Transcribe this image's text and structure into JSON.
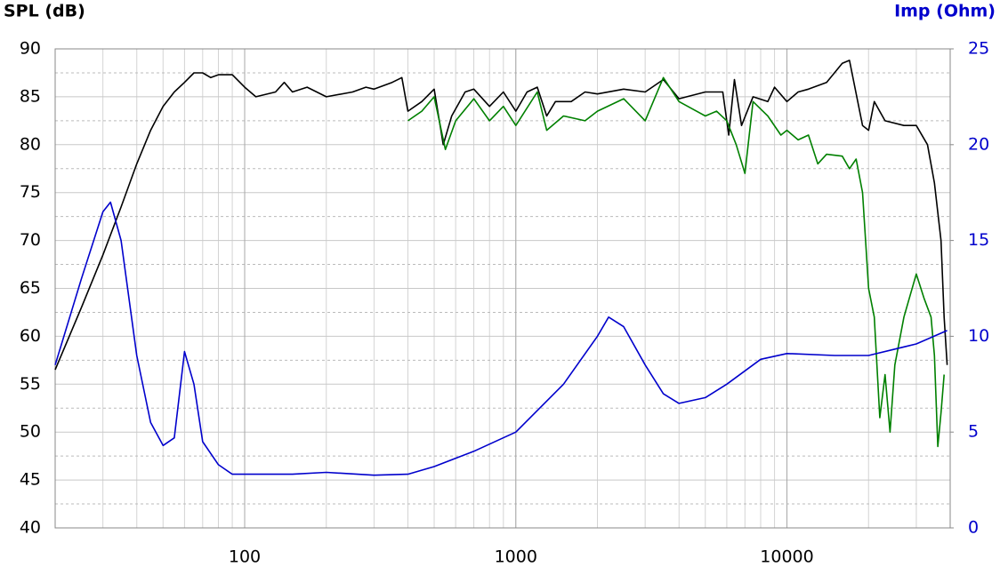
{
  "chart_data": {
    "type": "line",
    "log_x": true,
    "grid": true,
    "minor_grid": true,
    "ylabel": "SPL (dB)",
    "y2label": "Imp (Ohm)",
    "y2color": "#0000cc",
    "xlim": [
      20,
      40000
    ],
    "xticks": [
      100,
      1000,
      10000
    ],
    "ylim": [
      40,
      90
    ],
    "yticks": [
      40,
      45,
      50,
      55,
      60,
      65,
      70,
      75,
      80,
      85,
      90
    ],
    "y2lim": [
      0,
      25
    ],
    "y2ticks": [
      0,
      5,
      10,
      15,
      20,
      25
    ],
    "series": [
      {
        "color": "#000000",
        "x": [
          20,
          25,
          30,
          35,
          40,
          45,
          50,
          55,
          60,
          65,
          70,
          75,
          80,
          90,
          100,
          110,
          130,
          140,
          150,
          170,
          200,
          250,
          280,
          300,
          350,
          380,
          400,
          450,
          500,
          540,
          580,
          650,
          700,
          800,
          900,
          1000,
          1100,
          1200,
          1300,
          1400,
          1600,
          1800,
          2000,
          2500,
          3000,
          3500,
          4000,
          5000,
          5800,
          6100,
          6400,
          6800,
          7500,
          8500,
          9000,
          10000,
          11000,
          12000,
          14000,
          16000,
          17000,
          19000,
          20000,
          21000,
          23000,
          27000,
          30000,
          33000,
          35000,
          37000,
          38000,
          39000
        ],
        "values": [
          56.5,
          63,
          68.5,
          73.5,
          78,
          81.5,
          84,
          85.5,
          86.5,
          87.5,
          87.5,
          87,
          87.3,
          87.3,
          86,
          85,
          85.5,
          86.5,
          85.5,
          86,
          85,
          85.5,
          86,
          85.8,
          86.5,
          87,
          83.5,
          84.5,
          85.8,
          80,
          83,
          85.5,
          85.8,
          84,
          85.5,
          83.5,
          85.5,
          86,
          83,
          84.5,
          84.5,
          85.5,
          85.3,
          85.8,
          85.5,
          86.8,
          84.8,
          85.5,
          85.5,
          81,
          86.8,
          82,
          85,
          84.5,
          86,
          84.5,
          85.5,
          85.8,
          86.5,
          88.5,
          88.8,
          82,
          81.5,
          84.5,
          82.5,
          82,
          82,
          80,
          76,
          70,
          62,
          57
        ]
      },
      {
        "color": "#008000",
        "x": [
          400,
          450,
          500,
          550,
          600,
          700,
          800,
          900,
          1000,
          1200,
          1300,
          1500,
          1800,
          2000,
          2500,
          3000,
          3500,
          4000,
          5000,
          5500,
          6000,
          6500,
          7000,
          7500,
          8500,
          9500,
          10000,
          11000,
          12000,
          13000,
          14000,
          16000,
          17000,
          18000,
          19000,
          20000,
          21000,
          22000,
          23000,
          24000,
          25000,
          27000,
          30000,
          32000,
          34000,
          35000,
          36000,
          37000,
          38000
        ],
        "values": [
          82.5,
          83.5,
          85,
          79.5,
          82.5,
          84.8,
          82.5,
          84,
          82,
          85.5,
          81.5,
          83,
          82.5,
          83.5,
          84.8,
          82.5,
          87,
          84.5,
          83,
          83.5,
          82.5,
          80,
          77,
          84.5,
          83,
          81,
          81.5,
          80.5,
          81,
          78,
          79,
          78.8,
          77.5,
          78.5,
          75,
          65,
          62,
          51.5,
          56,
          50,
          57,
          62,
          66.5,
          64,
          62,
          58,
          48.5,
          52,
          56
        ]
      },
      {
        "color": "#0000cc",
        "axis": "y2",
        "x": [
          20,
          25,
          30,
          32,
          35,
          40,
          45,
          50,
          55,
          60,
          65,
          70,
          80,
          90,
          100,
          150,
          200,
          300,
          400,
          500,
          700,
          1000,
          1500,
          2000,
          2200,
          2500,
          3000,
          3500,
          4000,
          5000,
          6000,
          8000,
          10000,
          15000,
          20000,
          30000,
          39000
        ],
        "values": [
          8.5,
          13,
          16.5,
          17,
          15,
          9,
          5.5,
          4.3,
          4.7,
          9.2,
          7.5,
          4.5,
          3.3,
          2.8,
          2.8,
          2.8,
          2.9,
          2.75,
          2.8,
          3.2,
          4,
          5,
          7.5,
          10,
          11,
          10.5,
          8.5,
          7,
          6.5,
          6.8,
          7.5,
          8.8,
          9.1,
          9,
          9,
          9.6,
          10.3
        ]
      }
    ]
  }
}
